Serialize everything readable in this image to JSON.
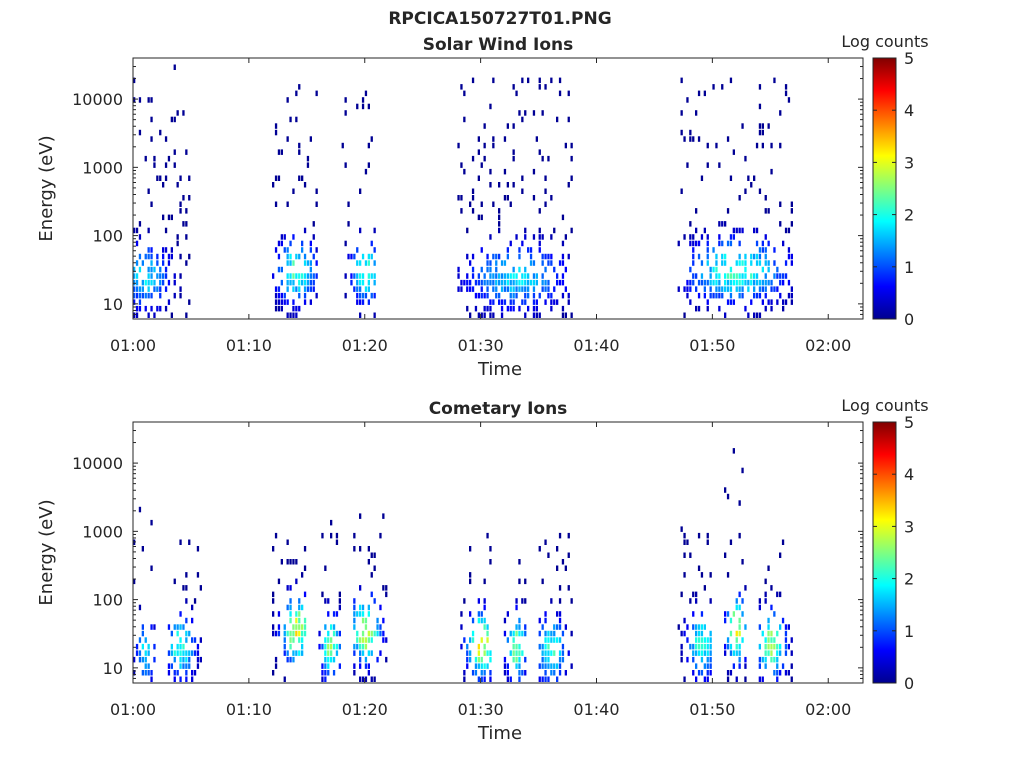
{
  "figure": {
    "title": "RPCICA150727T01.PNG"
  },
  "chart_data": [
    {
      "type": "heatmap",
      "title": "Solar Wind Ions",
      "xlabel": "Time",
      "ylabel": "Energy (eV)",
      "x_ticks": [
        "01:00",
        "01:10",
        "01:20",
        "01:30",
        "01:40",
        "01:50",
        "02:00"
      ],
      "x_range": [
        "01:00",
        "02:03"
      ],
      "y_scale": "log",
      "y_ticks": [
        10,
        100,
        1000,
        10000
      ],
      "y_tick_labels": [
        "10",
        "100",
        "1000",
        "10000"
      ],
      "y_range": [
        6,
        40000
      ],
      "colorbar": {
        "label": "Log counts",
        "range": [
          0,
          5
        ],
        "ticks": [
          "0",
          "1",
          "2",
          "3",
          "4",
          "5"
        ],
        "colormap": "jet"
      },
      "bursts": [
        {
          "start": "01:00",
          "end": "01:05",
          "peak_time": "01:01",
          "peak_energy_ev": 25,
          "peak_log_counts": 2.0,
          "max_energy_ev": 30000
        },
        {
          "start": "01:12",
          "end": "01:16",
          "peak_time": "01:14",
          "peak_energy_ev": 30,
          "peak_log_counts": 2.5,
          "max_energy_ev": 25000
        },
        {
          "start": "01:18",
          "end": "01:21",
          "peak_time": "01:20",
          "peak_energy_ev": 30,
          "peak_log_counts": 2.5,
          "max_energy_ev": 15000
        },
        {
          "start": "01:28",
          "end": "01:38",
          "peak_time": "01:33",
          "peak_energy_ev": 25,
          "peak_log_counts": 2.0,
          "max_energy_ev": 20000
        },
        {
          "start": "01:47",
          "end": "01:57",
          "peak_time": "01:52",
          "peak_energy_ev": 30,
          "peak_log_counts": 2.5,
          "max_energy_ev": 20000
        }
      ]
    },
    {
      "type": "heatmap",
      "title": "Cometary Ions",
      "xlabel": "Time",
      "ylabel": "Energy (eV)",
      "x_ticks": [
        "01:00",
        "01:10",
        "01:20",
        "01:30",
        "01:40",
        "01:50",
        "02:00"
      ],
      "x_range": [
        "01:00",
        "02:03"
      ],
      "y_scale": "log",
      "y_ticks": [
        10,
        100,
        1000,
        10000
      ],
      "y_tick_labels": [
        "10",
        "100",
        "1000",
        "10000"
      ],
      "y_range": [
        6,
        40000
      ],
      "colorbar": {
        "label": "Log counts",
        "range": [
          0,
          5
        ],
        "ticks": [
          "0",
          "1",
          "2",
          "3",
          "4",
          "5"
        ],
        "colormap": "jet"
      },
      "bursts": [
        {
          "start": "01:00",
          "end": "01:02",
          "peak_time": "01:01",
          "peak_energy_ev": 18,
          "peak_log_counts": 2.0,
          "max_energy_ev": 2500
        },
        {
          "start": "01:03",
          "end": "01:06",
          "peak_time": "01:04",
          "peak_energy_ev": 20,
          "peak_log_counts": 2.5,
          "max_energy_ev": 700
        },
        {
          "start": "01:12",
          "end": "01:15",
          "peak_time": "01:14",
          "peak_energy_ev": 35,
          "peak_log_counts": 3.5,
          "max_energy_ev": 1000
        },
        {
          "start": "01:16",
          "end": "01:18",
          "peak_time": "01:17",
          "peak_energy_ev": 20,
          "peak_log_counts": 3.0,
          "max_energy_ev": 1500
        },
        {
          "start": "01:19",
          "end": "01:22",
          "peak_time": "01:20",
          "peak_energy_ev": 35,
          "peak_log_counts": 3.5,
          "max_energy_ev": 1700
        },
        {
          "start": "01:28",
          "end": "01:31",
          "peak_time": "01:30",
          "peak_energy_ev": 22,
          "peak_log_counts": 3.5,
          "max_energy_ev": 1000
        },
        {
          "start": "01:32",
          "end": "01:34",
          "peak_time": "01:33",
          "peak_energy_ev": 20,
          "peak_log_counts": 3.0,
          "max_energy_ev": 800
        },
        {
          "start": "01:35",
          "end": "01:38",
          "peak_time": "01:36",
          "peak_energy_ev": 18,
          "peak_log_counts": 2.5,
          "max_energy_ev": 1200
        },
        {
          "start": "01:47",
          "end": "01:50",
          "peak_time": "01:49",
          "peak_energy_ev": 22,
          "peak_log_counts": 2.5,
          "max_energy_ev": 1300
        },
        {
          "start": "01:51",
          "end": "01:53",
          "peak_time": "01:52",
          "peak_energy_ev": 35,
          "peak_log_counts": 3.5,
          "max_energy_ev": 17000
        },
        {
          "start": "01:54",
          "end": "01:57",
          "peak_time": "01:55",
          "peak_energy_ev": 22,
          "peak_log_counts": 3.0,
          "max_energy_ev": 1300
        }
      ]
    }
  ]
}
